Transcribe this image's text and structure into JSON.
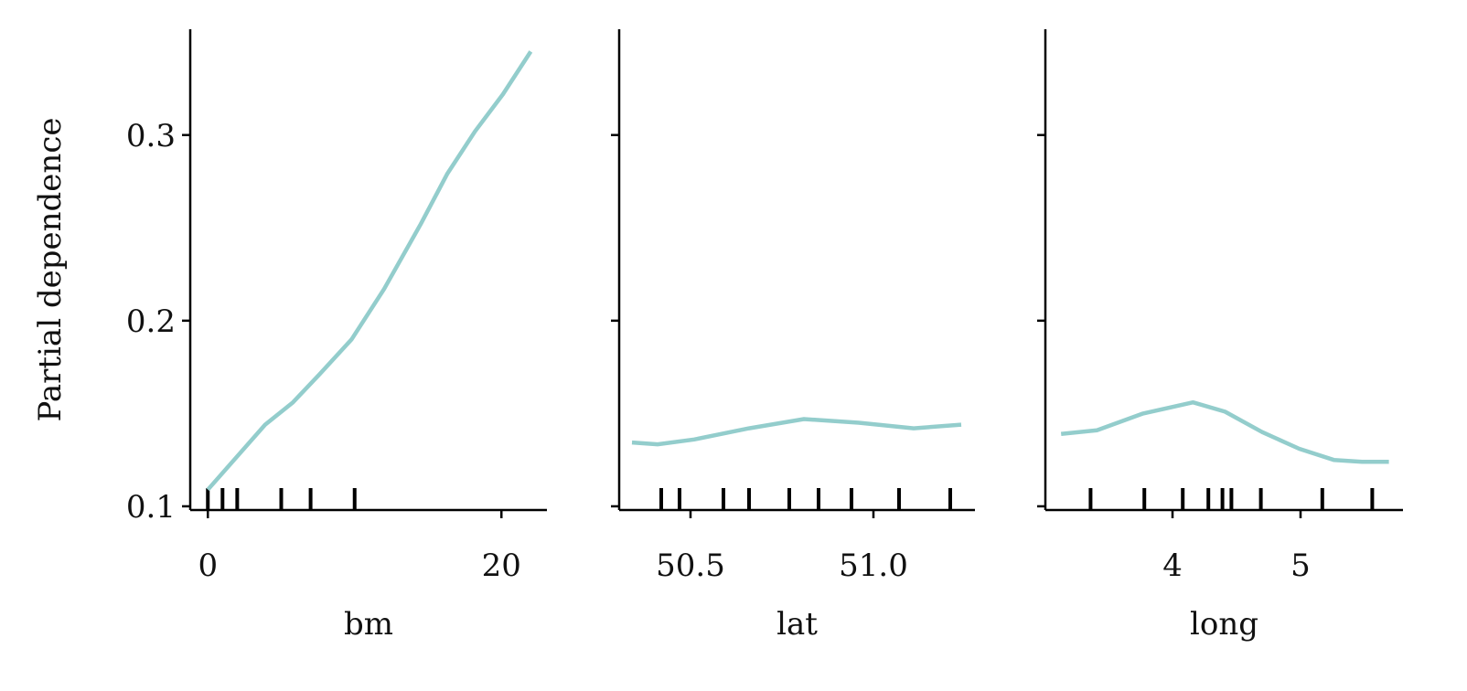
{
  "chart_data": [
    {
      "type": "line",
      "ylabel": "Partial dependence",
      "xlabel": "bm",
      "color": "#93cdcc",
      "x": [
        0,
        3.9,
        5.8,
        7.6,
        9.8,
        12,
        14.5,
        16.3,
        18.2,
        20.1,
        22
      ],
      "values": [
        0.109,
        0.144,
        0.156,
        0.171,
        0.19,
        0.217,
        0.252,
        0.279,
        0.302,
        0.322,
        0.345
      ],
      "deciles": [
        0,
        1,
        2,
        5,
        7,
        10
      ],
      "xlim": [
        -1.2,
        23.1
      ],
      "xticks": [
        0,
        20
      ],
      "ylim": [
        0.098,
        0.357
      ],
      "yticks": [
        0.1,
        0.2,
        0.3
      ],
      "ytick_labels": true
    },
    {
      "type": "line",
      "xlabel": "lat",
      "color": "#93cdcc",
      "x": [
        50.34,
        50.41,
        50.51,
        50.66,
        50.81,
        50.96,
        51.11,
        51.24
      ],
      "values": [
        0.1344,
        0.1334,
        0.136,
        0.142,
        0.147,
        0.145,
        0.142,
        0.144
      ],
      "deciles": [
        50.42,
        50.47,
        50.59,
        50.66,
        50.77,
        50.85,
        50.94,
        51.07,
        51.21
      ],
      "xlim": [
        50.305,
        51.2775
      ],
      "xticks": [
        50.5,
        {
          "value": 51,
          "label": "51.0"
        }
      ],
      "ylim": [
        0.098,
        0.357
      ],
      "yticks": [
        0.1,
        0.2,
        0.3
      ],
      "ytick_labels": false
    },
    {
      "type": "line",
      "xlabel": "long",
      "color": "#93cdcc",
      "x": [
        3.13,
        3.41,
        3.77,
        4.16,
        4.41,
        4.7,
        4.99,
        5.26,
        5.48,
        5.69
      ],
      "values": [
        0.139,
        0.141,
        0.15,
        0.156,
        0.151,
        0.14,
        0.131,
        0.125,
        0.124,
        0.124
      ],
      "deciles": [
        3.36,
        3.78,
        4.08,
        4.28,
        4.39,
        4.46,
        4.69,
        5.17,
        5.56
      ],
      "xlim": [
        3.007,
        5.8
      ],
      "xticks": [
        4,
        5
      ],
      "ylim": [
        0.098,
        0.357
      ],
      "yticks": [
        0.1,
        0.2,
        0.3
      ],
      "ytick_labels": false
    }
  ]
}
